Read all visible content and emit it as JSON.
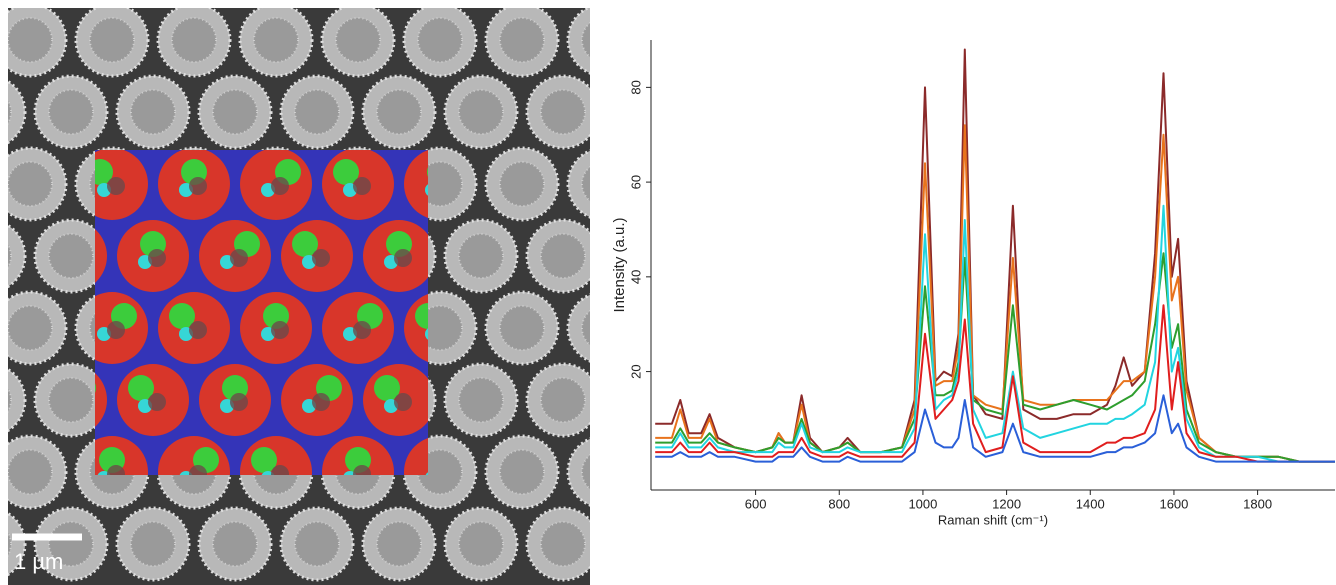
{
  "image": {
    "scale_bar_label": "1 µm"
  },
  "chart_data": {
    "type": "line",
    "x_label": "Raman shift (cm⁻¹)",
    "y_label": "Intensity (a.u.)",
    "x": [
      360,
      400,
      420,
      440,
      470,
      490,
      510,
      550,
      600,
      640,
      655,
      670,
      690,
      710,
      730,
      760,
      800,
      820,
      850,
      900,
      950,
      980,
      1005,
      1030,
      1050,
      1070,
      1085,
      1100,
      1120,
      1150,
      1190,
      1215,
      1240,
      1280,
      1320,
      1360,
      1400,
      1440,
      1460,
      1480,
      1500,
      1530,
      1555,
      1575,
      1595,
      1610,
      1630,
      1660,
      1700,
      1750,
      1800,
      1850,
      1900,
      1950,
      1985
    ],
    "series": [
      {
        "color": "#8b2a2a",
        "values": [
          9,
          9,
          14,
          7,
          7,
          11,
          6,
          4,
          3,
          4,
          7,
          5,
          5,
          15,
          6,
          3,
          4,
          6,
          3,
          3,
          4,
          14,
          80,
          18,
          20,
          19,
          28,
          88,
          15,
          11,
          10,
          55,
          12,
          10,
          10,
          11,
          11,
          13,
          17,
          23,
          17,
          20,
          45,
          83,
          40,
          48,
          18,
          6,
          3,
          2,
          2,
          2,
          1,
          1,
          1
        ]
      },
      {
        "color": "#e8731c",
        "values": [
          6,
          6,
          12,
          6,
          6,
          10,
          5,
          4,
          3,
          4,
          7,
          5,
          5,
          13,
          5,
          3,
          4,
          5,
          3,
          3,
          4,
          12,
          64,
          17,
          18,
          18,
          25,
          72,
          15,
          13,
          12,
          44,
          14,
          13,
          13,
          14,
          14,
          14,
          16,
          18,
          18,
          20,
          40,
          70,
          35,
          40,
          16,
          6,
          3,
          2,
          2,
          2,
          1,
          1,
          1
        ]
      },
      {
        "color": "#2e9e2e",
        "values": [
          5,
          5,
          8,
          5,
          5,
          7,
          5,
          4,
          3,
          4,
          6,
          5,
          5,
          10,
          5,
          3,
          4,
          5,
          3,
          3,
          4,
          10,
          38,
          15,
          15,
          16,
          22,
          44,
          14,
          12,
          11,
          34,
          13,
          12,
          13,
          14,
          13,
          12,
          13,
          14,
          15,
          18,
          30,
          45,
          25,
          30,
          12,
          5,
          3,
          2,
          2,
          2,
          1,
          1,
          1
        ]
      },
      {
        "color": "#22d4e0",
        "values": [
          4,
          4,
          7,
          4,
          4,
          6,
          4,
          3,
          3,
          3,
          5,
          4,
          4,
          9,
          4,
          3,
          3,
          4,
          3,
          3,
          3,
          8,
          49,
          12,
          14,
          15,
          20,
          52,
          12,
          6,
          7,
          20,
          8,
          6,
          7,
          8,
          9,
          9,
          10,
          10,
          11,
          13,
          22,
          55,
          20,
          25,
          10,
          4,
          2,
          2,
          2,
          1,
          1,
          1,
          1
        ]
      },
      {
        "color": "#e01e1e",
        "values": [
          3,
          3,
          5,
          3,
          3,
          5,
          3,
          3,
          2,
          2,
          3,
          3,
          3,
          6,
          3,
          2,
          2,
          3,
          2,
          2,
          2,
          5,
          28,
          10,
          12,
          14,
          18,
          31,
          9,
          3,
          4,
          19,
          5,
          3,
          3,
          3,
          3,
          5,
          5,
          6,
          6,
          7,
          12,
          34,
          12,
          22,
          7,
          3,
          2,
          2,
          1,
          1,
          1,
          1,
          1
        ]
      },
      {
        "color": "#2a5fd8",
        "values": [
          2,
          2,
          3,
          2,
          2,
          3,
          2,
          2,
          1,
          1,
          2,
          2,
          2,
          4,
          2,
          1,
          1,
          2,
          1,
          1,
          1,
          3,
          12,
          5,
          4,
          4,
          6,
          14,
          4,
          2,
          3,
          9,
          3,
          2,
          2,
          2,
          2,
          3,
          3,
          4,
          4,
          5,
          7,
          15,
          7,
          9,
          4,
          2,
          1,
          1,
          1,
          1,
          1,
          1,
          1
        ]
      }
    ],
    "xlim": [
      350,
      1985
    ],
    "xticks": [
      600,
      800,
      1000,
      1200,
      1400,
      1600,
      1800
    ],
    "ylim": [
      -5,
      90
    ],
    "yticks": [
      20,
      40,
      60,
      80
    ]
  }
}
